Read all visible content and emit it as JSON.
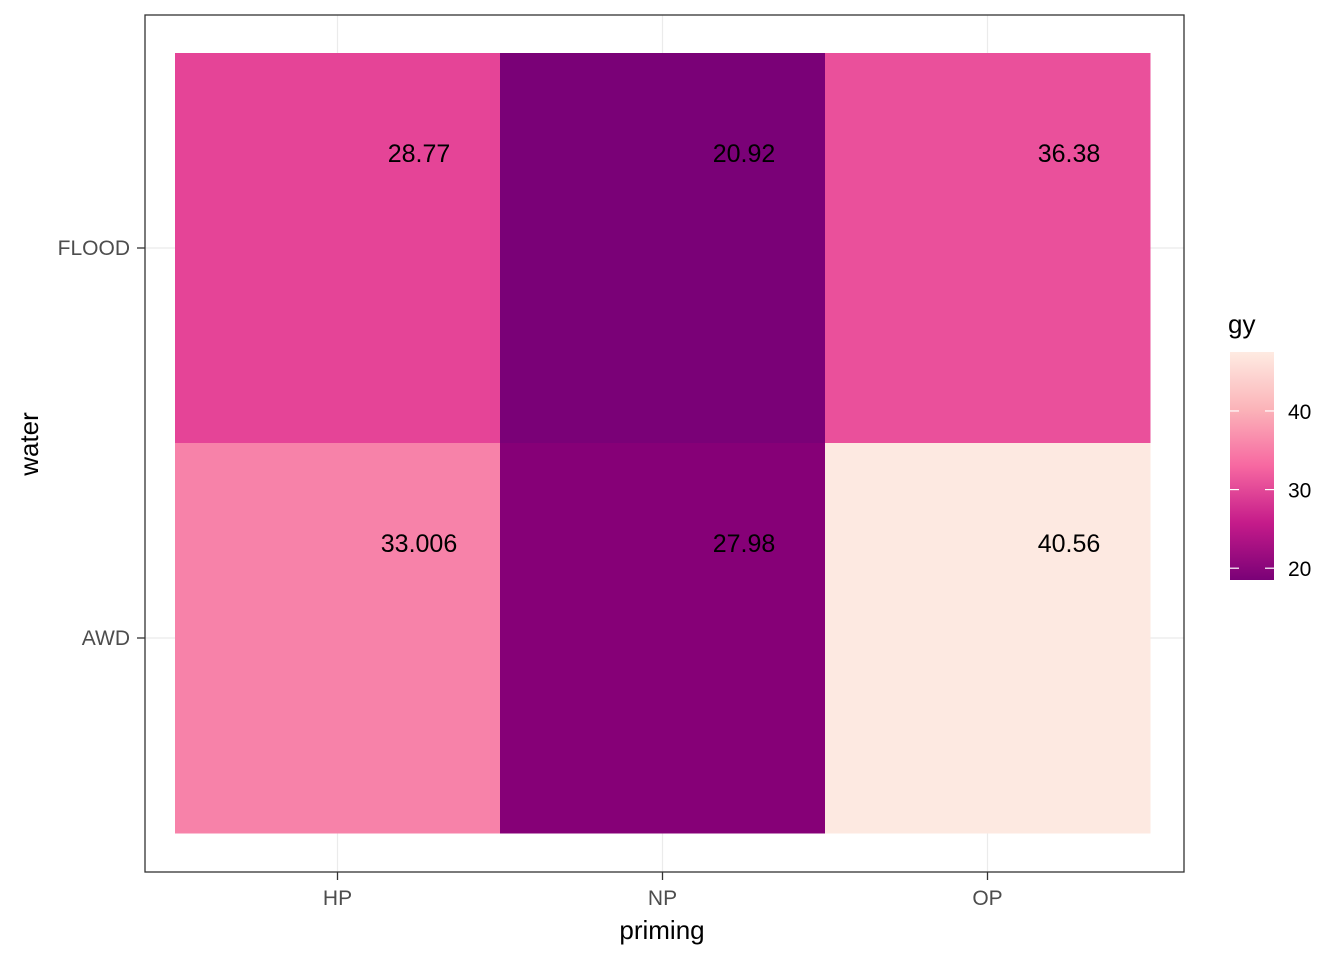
{
  "chart_data": {
    "type": "heatmap",
    "x_categories": [
      "HP",
      "NP",
      "OP"
    ],
    "y_categories": [
      "AWD",
      "FLOOD"
    ],
    "cells": [
      {
        "x": "HP",
        "y": "FLOOD",
        "value": 28.77,
        "label": "28.77"
      },
      {
        "x": "NP",
        "y": "FLOOD",
        "value": 20.92,
        "label": "20.92"
      },
      {
        "x": "OP",
        "y": "FLOOD",
        "value": 36.38,
        "label": "36.38"
      },
      {
        "x": "HP",
        "y": "AWD",
        "value": 33.006,
        "label": "33.006"
      },
      {
        "x": "NP",
        "y": "AWD",
        "value": 27.98,
        "label": "27.98"
      },
      {
        "x": "OP",
        "y": "AWD",
        "value": 40.56,
        "label": "40.56"
      }
    ],
    "xlabel": "priming",
    "ylabel": "water",
    "legend": {
      "title": "gy",
      "position": "right",
      "range": [
        18.5,
        47.5
      ],
      "ticks": [
        20,
        30,
        40
      ],
      "colors": [
        "#7a0177",
        "#c51b8a",
        "#f768a1",
        "#fbb4b9",
        "#feebe2"
      ]
    },
    "colors": {
      "HP|FLOOD": "#e54497",
      "NP|FLOOD": "#7a0177",
      "OP|FLOOD": "#ea509b",
      "HP|AWD": "#f782a9",
      "NP|AWD": "#860077",
      "OP|AWD": "#fde9e1"
    },
    "grid": true
  }
}
